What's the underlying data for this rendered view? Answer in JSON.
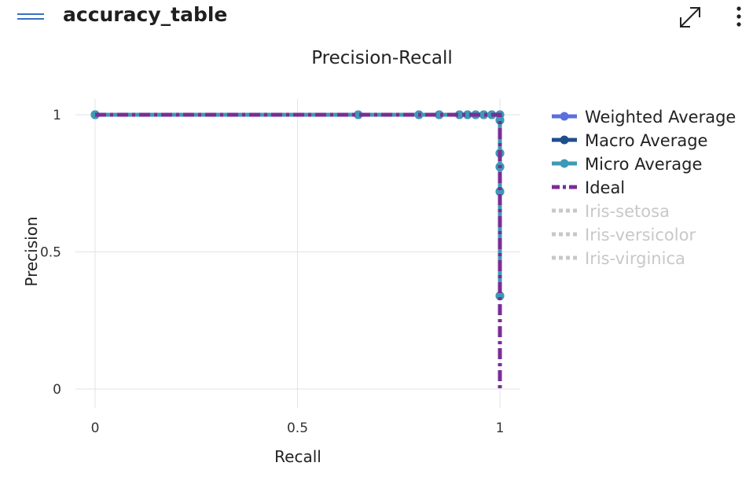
{
  "header": {
    "title": "accuracy_table",
    "menu_icon": "hamburger-menu-icon",
    "expand_icon": "expand-diagonal-icon",
    "more_icon": "vertical-ellipsis-icon",
    "accent_color": "#3a6fc4"
  },
  "chart_data": {
    "type": "line",
    "title": "Precision-Recall",
    "xlabel": "Recall",
    "ylabel": "Precision",
    "xlim": [
      0,
      1
    ],
    "ylim": [
      0,
      1
    ],
    "x_ticks": [
      0,
      0.5,
      1
    ],
    "y_ticks": [
      0,
      0.5,
      1
    ],
    "x_tick_labels": [
      "0",
      "0.5",
      "1"
    ],
    "y_tick_labels": [
      "0",
      "0.5",
      "1"
    ],
    "grid": true,
    "legend_position": "right",
    "series": [
      {
        "name": "Weighted Average",
        "color": "#5b6ee1",
        "style": "solid-markers",
        "visible": true,
        "x": [
          0,
          0,
          0.65,
          0.8,
          0.85,
          0.9,
          0.92,
          0.94,
          0.96,
          0.98,
          1.0,
          1.0,
          1.0,
          1.0,
          1.0,
          1.0
        ],
        "y": [
          1,
          1,
          1,
          1,
          1,
          1,
          1,
          1,
          1,
          1,
          1,
          0.98,
          0.86,
          0.81,
          0.72,
          0.34
        ]
      },
      {
        "name": "Macro Average",
        "color": "#1f4e8c",
        "style": "solid-markers",
        "visible": true,
        "x": [
          0,
          0,
          0.65,
          0.8,
          0.85,
          0.9,
          0.92,
          0.94,
          0.96,
          0.98,
          1.0,
          1.0,
          1.0,
          1.0,
          1.0,
          1.0
        ],
        "y": [
          1,
          1,
          1,
          1,
          1,
          1,
          1,
          1,
          1,
          1,
          1,
          0.98,
          0.86,
          0.81,
          0.72,
          0.34
        ]
      },
      {
        "name": "Micro Average",
        "color": "#3d9ab5",
        "style": "solid-markers",
        "visible": true,
        "x": [
          0,
          0,
          0.65,
          0.8,
          0.85,
          0.9,
          0.92,
          0.94,
          0.96,
          0.98,
          1.0,
          1.0,
          1.0,
          1.0,
          1.0,
          1.0
        ],
        "y": [
          1,
          1,
          1,
          1,
          1,
          1,
          1,
          1,
          1,
          1,
          1,
          0.98,
          0.86,
          0.81,
          0.72,
          0.34
        ]
      },
      {
        "name": "Ideal",
        "color": "#7a2d95",
        "style": "dash-dot",
        "visible": true,
        "x": [
          0,
          1,
          1
        ],
        "y": [
          1,
          1,
          0
        ]
      },
      {
        "name": "Iris-setosa",
        "color": "#c8c8c8",
        "style": "dotted",
        "visible": false
      },
      {
        "name": "Iris-versicolor",
        "color": "#c8c8c8",
        "style": "dotted",
        "visible": false
      },
      {
        "name": "Iris-virginica",
        "color": "#c8c8c8",
        "style": "dotted",
        "visible": false
      }
    ]
  }
}
